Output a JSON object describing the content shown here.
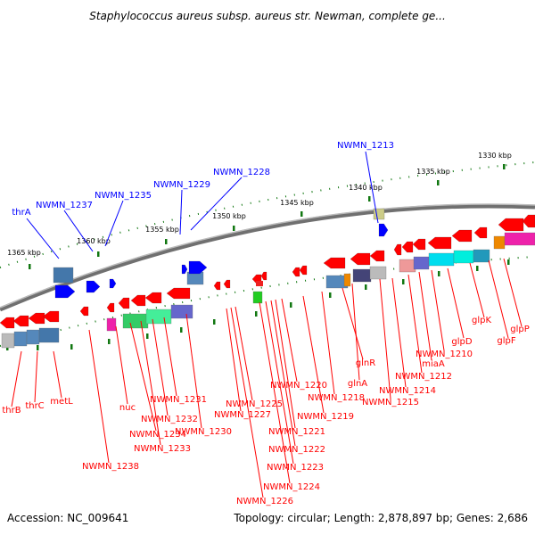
{
  "title": "Staphylococcus aureus subsp. aureus str. Newman, complete ge...",
  "footer": {
    "accession": "Accession: NC_009641",
    "summary": "Topology: circular; Length: 2,878,897 bp; Genes: 2,686"
  },
  "colors": {
    "forward_gene": "#0000ff",
    "reverse_gene": "#ff0000",
    "backbone": "#888888",
    "tick": "#117711"
  },
  "ruler_labels": [
    "1330 kbp",
    "1335 kbp",
    "1340 kbp",
    "1345 kbp",
    "1350 kbp",
    "1355 kbp",
    "1360 kbp",
    "1365 kbp"
  ],
  "forward_genes": [
    "NWMN_1213",
    "NWMN_1228",
    "NWMN_1229",
    "NWMN_1235",
    "NWMN_1237",
    "thrA"
  ],
  "reverse_genes": [
    "glpP",
    "glpF",
    "glpK",
    "glpD",
    "NWMN_1210",
    "miaA",
    "NWMN_1212",
    "NWMN_1214",
    "NWMN_1215",
    "glnA",
    "glnR",
    "NWMN_1218",
    "NWMN_1219",
    "NWMN_1220",
    "NWMN_1221",
    "NWMN_1222",
    "NWMN_1223",
    "NWMN_1224",
    "NWMN_1225",
    "NWMN_1226",
    "NWMN_1227",
    "NWMN_1230",
    "NWMN_1231",
    "NWMN_1232",
    "NWMN_1233",
    "NWMN_1234",
    "nuc",
    "NWMN_1238",
    "metL",
    "thrC",
    "thrB"
  ]
}
